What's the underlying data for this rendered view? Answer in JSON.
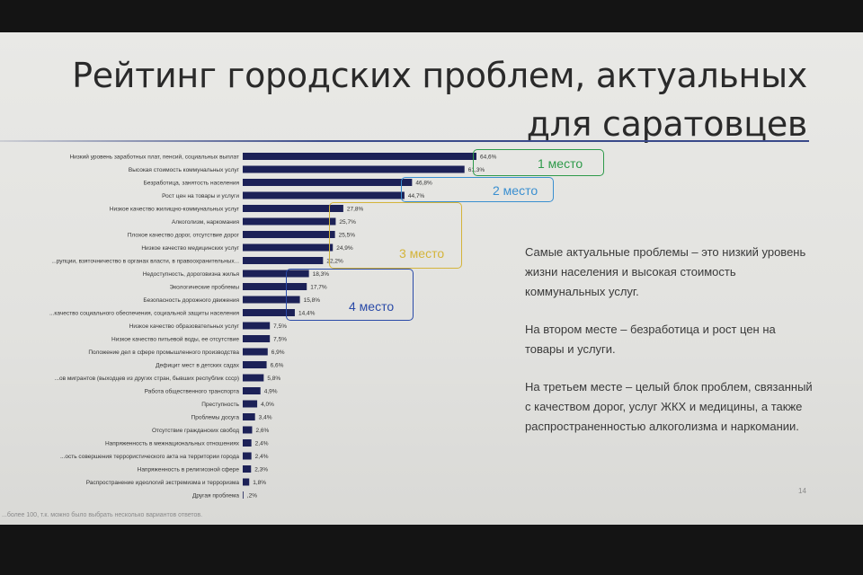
{
  "slide": {
    "title_line1": "Рейтинг городских проблем, актуальных",
    "title_line2": "для саратовцев",
    "page_number": "14",
    "footnote": "...более 100, т.к. можно было выбрать несколько вариантов ответов."
  },
  "summary": {
    "p1": "Самые актуальные проблемы – это низкий уровень жизни населения и высокая стоимость коммунальных услуг.",
    "p2": "На втором месте – безработица и рост цен на товары и услуги.",
    "p3": "На третьем месте – целый блок проблем, связанный с качеством дорог, услуг ЖКХ и медицины, а также распространенностью алкоголизма и наркомании."
  },
  "ranks": [
    {
      "label": "1 место",
      "color": "#2e9a4a"
    },
    {
      "label": "2 место",
      "color": "#3a8fd0"
    },
    {
      "label": "3 место",
      "color": "#d4b43a"
    },
    {
      "label": "4 место",
      "color": "#2a4aa8"
    }
  ],
  "chart_data": {
    "type": "bar",
    "orientation": "horizontal",
    "categories": [
      "Низкий уровень заработных плат, пенсий, социальных выплат",
      "Высокая стоимость коммунальных услуг",
      "Безработица, занятость населения",
      "Рост цен на товары и услуги",
      "Низкое качество жилищно-коммунальных услуг",
      "Алкоголизм, наркомания",
      "Плохое качество дорог, отсутствие дорог",
      "Низкое качество медицинских услуг",
      "...рупции, взяточничество в органах власти, в правоохранительных...",
      "Недоступность, дороговизна жилья",
      "Экологические проблемы",
      "Безопасность дорожного движения",
      "...качество социального обеспечения, социальной защиты населения",
      "Низкое качество образовательных услуг",
      "Низкое качество питьевой воды, ее отсутствие",
      "Положение дел в сфере промышленного производства",
      "Дефицит мест в детских садах",
      "...ов мигрантов (выходцев из других стран, бывших республик ссср)",
      "Работа общественного транспорта",
      "Преступность",
      "Проблемы досуга",
      "Отсутствие гражданских свобод",
      "Напряженность в межнациональных отношениях",
      "...ость совершения террористического акта на территории города",
      "Напряженность в религиозной сфере",
      "Распространение идеологий экстремизма и терроризма",
      "Другая проблема"
    ],
    "values": [
      64.6,
      61.3,
      46.8,
      44.7,
      27.8,
      25.7,
      25.5,
      24.9,
      22.2,
      18.3,
      17.7,
      15.8,
      14.4,
      7.5,
      7.5,
      6.9,
      6.6,
      5.8,
      4.9,
      4.0,
      3.4,
      2.6,
      2.4,
      2.4,
      2.3,
      1.8,
      0.2
    ],
    "value_labels": [
      "64,6%",
      "61,3%",
      "46,8%",
      "44,7%",
      "27,8%",
      "25,7%",
      "25,5%",
      "24,9%",
      "22,2%",
      "18,3%",
      "17,7%",
      "15,8%",
      "14,4%",
      "7,5%",
      "7,5%",
      "6,9%",
      "6,6%",
      "5,8%",
      "4,9%",
      "4,0%",
      "3,4%",
      "2,6%",
      "2,4%",
      "2,4%",
      "2,3%",
      "1,8%",
      ",2%"
    ],
    "xlim": [
      0,
      70
    ],
    "unit": "%",
    "grid": false,
    "legend": "none"
  }
}
